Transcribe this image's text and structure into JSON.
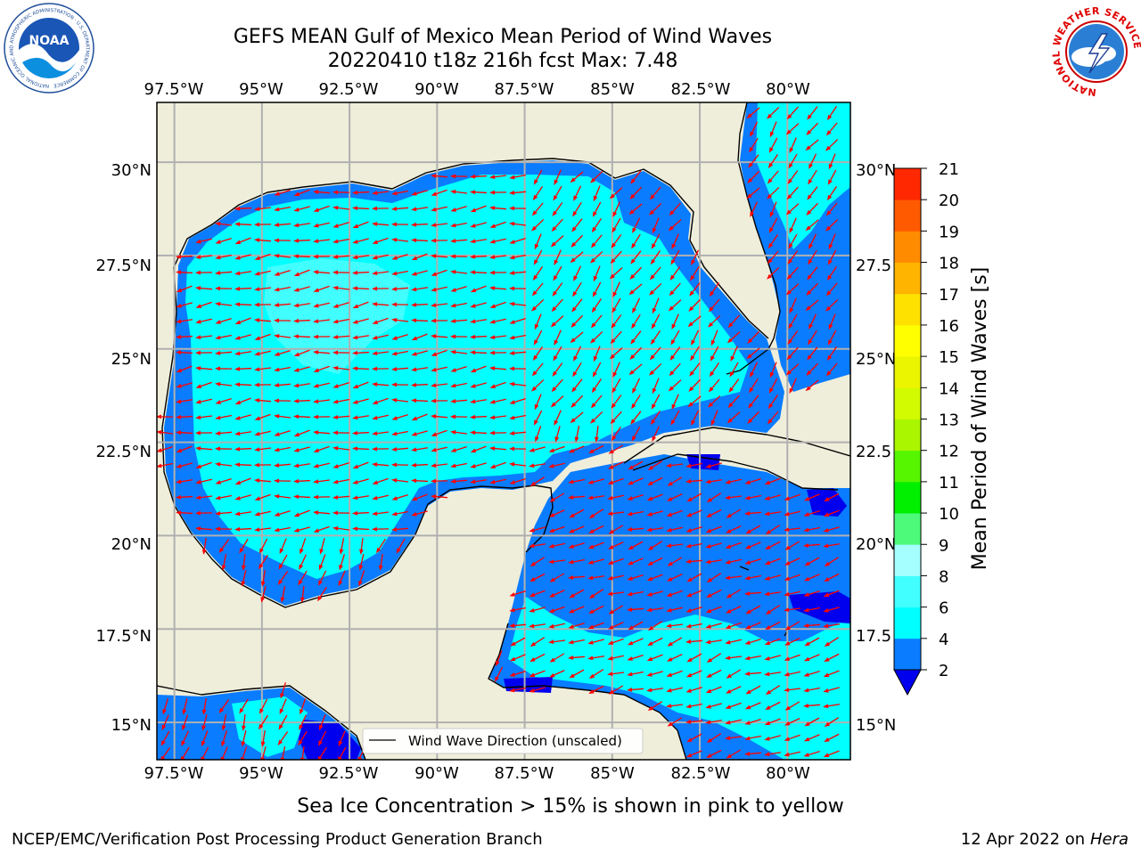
{
  "title": {
    "line1": "GEFS MEAN Gulf of Mexico Mean Period of Wind Waves",
    "line2": "20220410 t18z 216h fcst   Max: 7.48"
  },
  "logos": {
    "left": "NOAA",
    "left_ring": "NATIONAL OCEANIC AND ATMOSPHERIC ADMINISTRATION · U.S. DEPARTMENT OF COMMERCE",
    "right_ring": "NATIONAL WEATHER SERVICE"
  },
  "axes": {
    "lon_labels": [
      "97.5°W",
      "95°W",
      "92.5°W",
      "90°W",
      "87.5°W",
      "85°W",
      "82.5°W",
      "80°W"
    ],
    "lat_labels": [
      "30°N",
      "27.5°N",
      "25°N",
      "22.5°N",
      "20°N",
      "17.5°N",
      "15°N"
    ],
    "lat_labels_right": [
      "30°N",
      "27.5",
      "25°N",
      "22.5",
      "20°N",
      "17.5",
      "15°N"
    ],
    "lon_range": [
      -98,
      -78.2
    ],
    "lat_range": [
      14,
      31.6
    ]
  },
  "legend": {
    "label": "Wind Wave Direction (unscaled)"
  },
  "colorbar": {
    "label": "Mean Period of Wind Waves [s]",
    "ticks": [
      "2",
      "4",
      "6",
      "8",
      "9",
      "10",
      "11",
      "12",
      "13",
      "14",
      "15",
      "16",
      "17",
      "18",
      "19",
      "20",
      "21"
    ],
    "colors": [
      "#0a7cff",
      "#00ffff",
      "#41ffff",
      "#a6ffff",
      "#4dfa7a",
      "#00f000",
      "#56f500",
      "#aaf500",
      "#d2fa00",
      "#ebf500",
      "#ffff00",
      "#ffe100",
      "#ffb400",
      "#ff8c00",
      "#ff5a00",
      "#ff2800"
    ],
    "under_color": "#0000ee"
  },
  "map_colors": {
    "land": "#efeedb",
    "sea_dark": "#0a7cff",
    "sea_deep": "#0000ee",
    "sea_mid": "#00ffff",
    "sea_light": "#41ffff",
    "arrow": "#ff0000",
    "grid": "#b0b0b0"
  },
  "notes": {
    "sea_ice": "Sea Ice Concentration > 15% is shown in pink to yellow"
  },
  "footer": {
    "left": "NCEP/EMC/Verification Post Processing Product Generation Branch",
    "date": "12 Apr 2022 on ",
    "host": "Hera"
  }
}
